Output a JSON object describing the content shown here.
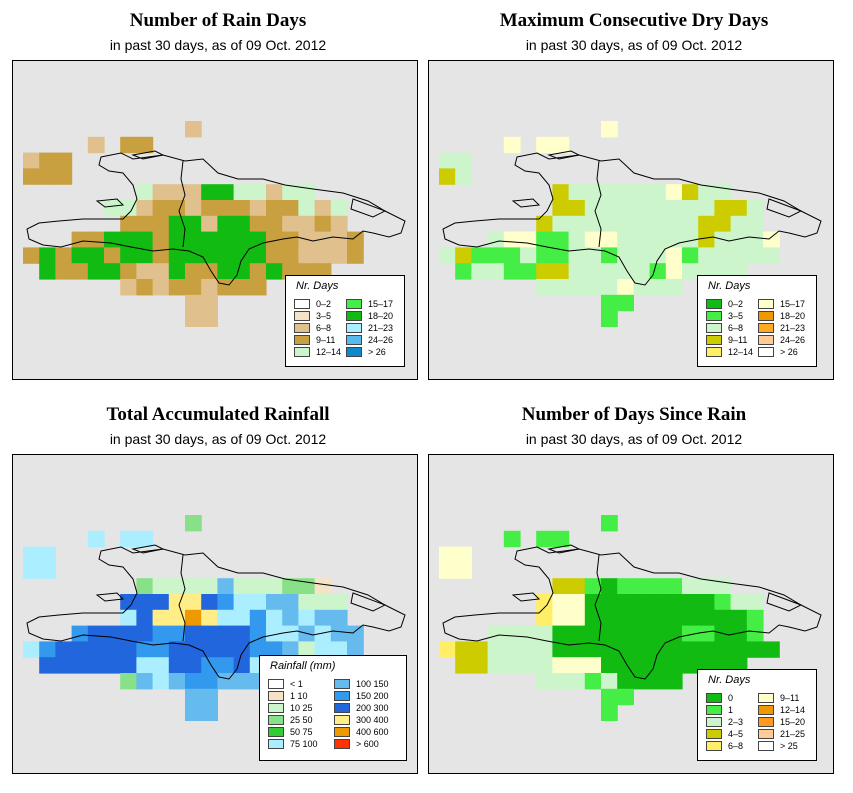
{
  "panels": [
    {
      "id": "rain-days",
      "title": "Number of Rain Days",
      "subtitle": "in past 30 days, as of  09 Oct. 2012",
      "legend_title": "Nr. Days",
      "legend_items": [
        {
          "label": "0–2",
          "color": "#ffffff"
        },
        {
          "label": "3–5",
          "color": "#f5e3c8"
        },
        {
          "label": "6–8",
          "color": "#e0c08c"
        },
        {
          "label": "9–11",
          "color": "#c8a040"
        },
        {
          "label": "12–14",
          "color": "#ccf5cc"
        },
        {
          "label": "15–17",
          "color": "#44ee44"
        },
        {
          "label": "18–20",
          "color": "#11bb11"
        },
        {
          "label": "21–23",
          "color": "#aaeeff"
        },
        {
          "label": "24–26",
          "color": "#55bbee"
        },
        {
          "label": "> 26",
          "color": "#1188cc"
        }
      ]
    },
    {
      "id": "max-dry-days",
      "title": "Maximum Consecutive Dry Days",
      "subtitle": "in past 30 days, as of  09 Oct. 2012",
      "legend_title": "Nr. Days",
      "legend_items": [
        {
          "label": "0–2",
          "color": "#11bb11"
        },
        {
          "label": "3–5",
          "color": "#44ee44"
        },
        {
          "label": "6–8",
          "color": "#ccf5cc"
        },
        {
          "label": "9–11",
          "color": "#cccc00"
        },
        {
          "label": "12–14",
          "color": "#ffee66"
        },
        {
          "label": "15–17",
          "color": "#ffffcc"
        },
        {
          "label": "18–20",
          "color": "#ee9900"
        },
        {
          "label": "21–23",
          "color": "#ffaa22"
        },
        {
          "label": "24–26",
          "color": "#ffcc99"
        },
        {
          "label": "> 26",
          "color": "#ffffff"
        }
      ]
    },
    {
      "id": "total-rainfall",
      "title": "Total Accumulated Rainfall",
      "subtitle": "in past 30 days, as of  09 Oct. 2012",
      "legend_title": "Rainfall (mm)",
      "legend_items": [
        {
          "label": "< 1",
          "color": "#ffffff"
        },
        {
          "label": "1   10",
          "color": "#f5e3c8"
        },
        {
          "label": "10   25",
          "color": "#ccf5cc"
        },
        {
          "label": "25   50",
          "color": "#88e088"
        },
        {
          "label": "50   75",
          "color": "#33cc33"
        },
        {
          "label": "75   100",
          "color": "#aaeeff"
        },
        {
          "label": "100   150",
          "color": "#66bbee"
        },
        {
          "label": "150   200",
          "color": "#3399ee"
        },
        {
          "label": "200   300",
          "color": "#2266dd"
        },
        {
          "label": "300   400",
          "color": "#ffee88"
        },
        {
          "label": "400   600",
          "color": "#ee9900"
        },
        {
          "label": "> 600",
          "color": "#ff3300"
        }
      ]
    },
    {
      "id": "days-since-rain",
      "title": "Number of Days Since Rain",
      "subtitle": "in past 30 days, as of  09 Oct. 2012",
      "legend_title": "Nr. Days",
      "legend_items": [
        {
          "label": "0",
          "color": "#11bb11"
        },
        {
          "label": "1",
          "color": "#44ee44"
        },
        {
          "label": "2–3",
          "color": "#ccf5cc"
        },
        {
          "label": "4–5",
          "color": "#cccc00"
        },
        {
          "label": "6–8",
          "color": "#ffee66"
        },
        {
          "label": "9–11",
          "color": "#ffffcc"
        },
        {
          "label": "12–14",
          "color": "#ee9900"
        },
        {
          "label": "15–20",
          "color": "#ff9922"
        },
        {
          "label": "21–25",
          "color": "#ffcc99"
        },
        {
          "label": "> 25",
          "color": "#ffffff"
        }
      ]
    }
  ],
  "grids": {
    "rain-days": [
      "..........D..........",
      "....D.EE.............",
      "DEE..................",
      "EEE..................",
      ".......CDDDGGCCDCC...",
      ".....CCDEEDEEEDEECDC.",
      "......EEEGGDGGEEDDED.",
      "...EEGGGEGGGGGGEEDDDE",
      "EGEGGEGGEGGGGGGEEDDDE",
      ".GEEGGEDDGEEGGEGEEE..",
      "......DEDEEDEEE......",
      "..........DD.........",
      "..........DD........."
    ],
    "max-dry-days": [
      "..........F..........",
      "....F.FF.............",
      "EE...................",
      "DE...................",
      ".......DEEEEEEFDEE...",
      ".......DDEEEEEEEEDDE.",
      "......DEEEEEEEEEDDEE.",
      "...EFFGGEFFEEEEEDEEEF",
      "EDGGGEGGEEGEEEFGEEEEE",
      ".GEEGGDDEEEEEGFEEEE..",
      "......EEEEEFEEE......",
      "..........GG.........",
      "..........G.........."
    ],
    "total-rainfall": [
      "..........C..........",
      "....G.GG.............",
      "FF...................",
      "FF...................",
      ".......CDDDDEDDDCCB..",
      "......IIIJJIHGGEEDDD.",
      "......GIJJKJGGHGEGEE.",
      "...HIIIIHHIIIIHGGEGEE",
      "GHIIIIIHHIIIIIHHEDGGE",
      ".IIIIIIGGIIHHIGGHEE..",
      "......CEGEHHEEE......",
      "..........EE.........",
      "..........EE........."
    ],
    "days-since-rain": [
      "..........B..........",
      "....B.BB.............",
      "FF...................",
      "FF...................",
      ".......DDBABBBBCCC...",
      "......EFFAAAAAAAABCC.",
      "......EFFAAAAAAAAAAB.",
      "...CCCCAAAAAAAABBAAB",
      "EDDCCCCAAAAAAAAAAAAAA",
      ".DDCCCCFFFAAAAAAAAA..",
      "......CCCBCAAAA......",
      "..........BB.........",
      "..........B.........."
    ]
  },
  "grid_letter_colors": {
    "rain-days": {
      "A": "#ffffff",
      "B": "#f5e3c8",
      "C": "#ccf5cc",
      "D": "#e0c08c",
      "E": "#c8a040",
      "F": "#aaeeff",
      "G": "#11bb11",
      "H": "#44ee44"
    },
    "max-dry-days": {
      "A": "#11bb11",
      "B": "#ffffcc",
      "C": "#ffee66",
      "D": "#cccc00",
      "E": "#ccf5cc",
      "F": "#ffffcc",
      "G": "#44ee44"
    },
    "total-rainfall": {
      "A": "#ffffff",
      "B": "#f5e3c8",
      "C": "#88e088",
      "D": "#ccf5cc",
      "E": "#66bbee",
      "F": "#aaeeff",
      "G": "#aaeeff",
      "H": "#3399ee",
      "I": "#2266dd",
      "J": "#ffee88",
      "K": "#ee9900"
    },
    "days-since-rain": {
      "A": "#11bb11",
      "B": "#44ee44",
      "C": "#ccf5cc",
      "D": "#cccc00",
      "E": "#ffee66",
      "F": "#ffffcc"
    }
  }
}
